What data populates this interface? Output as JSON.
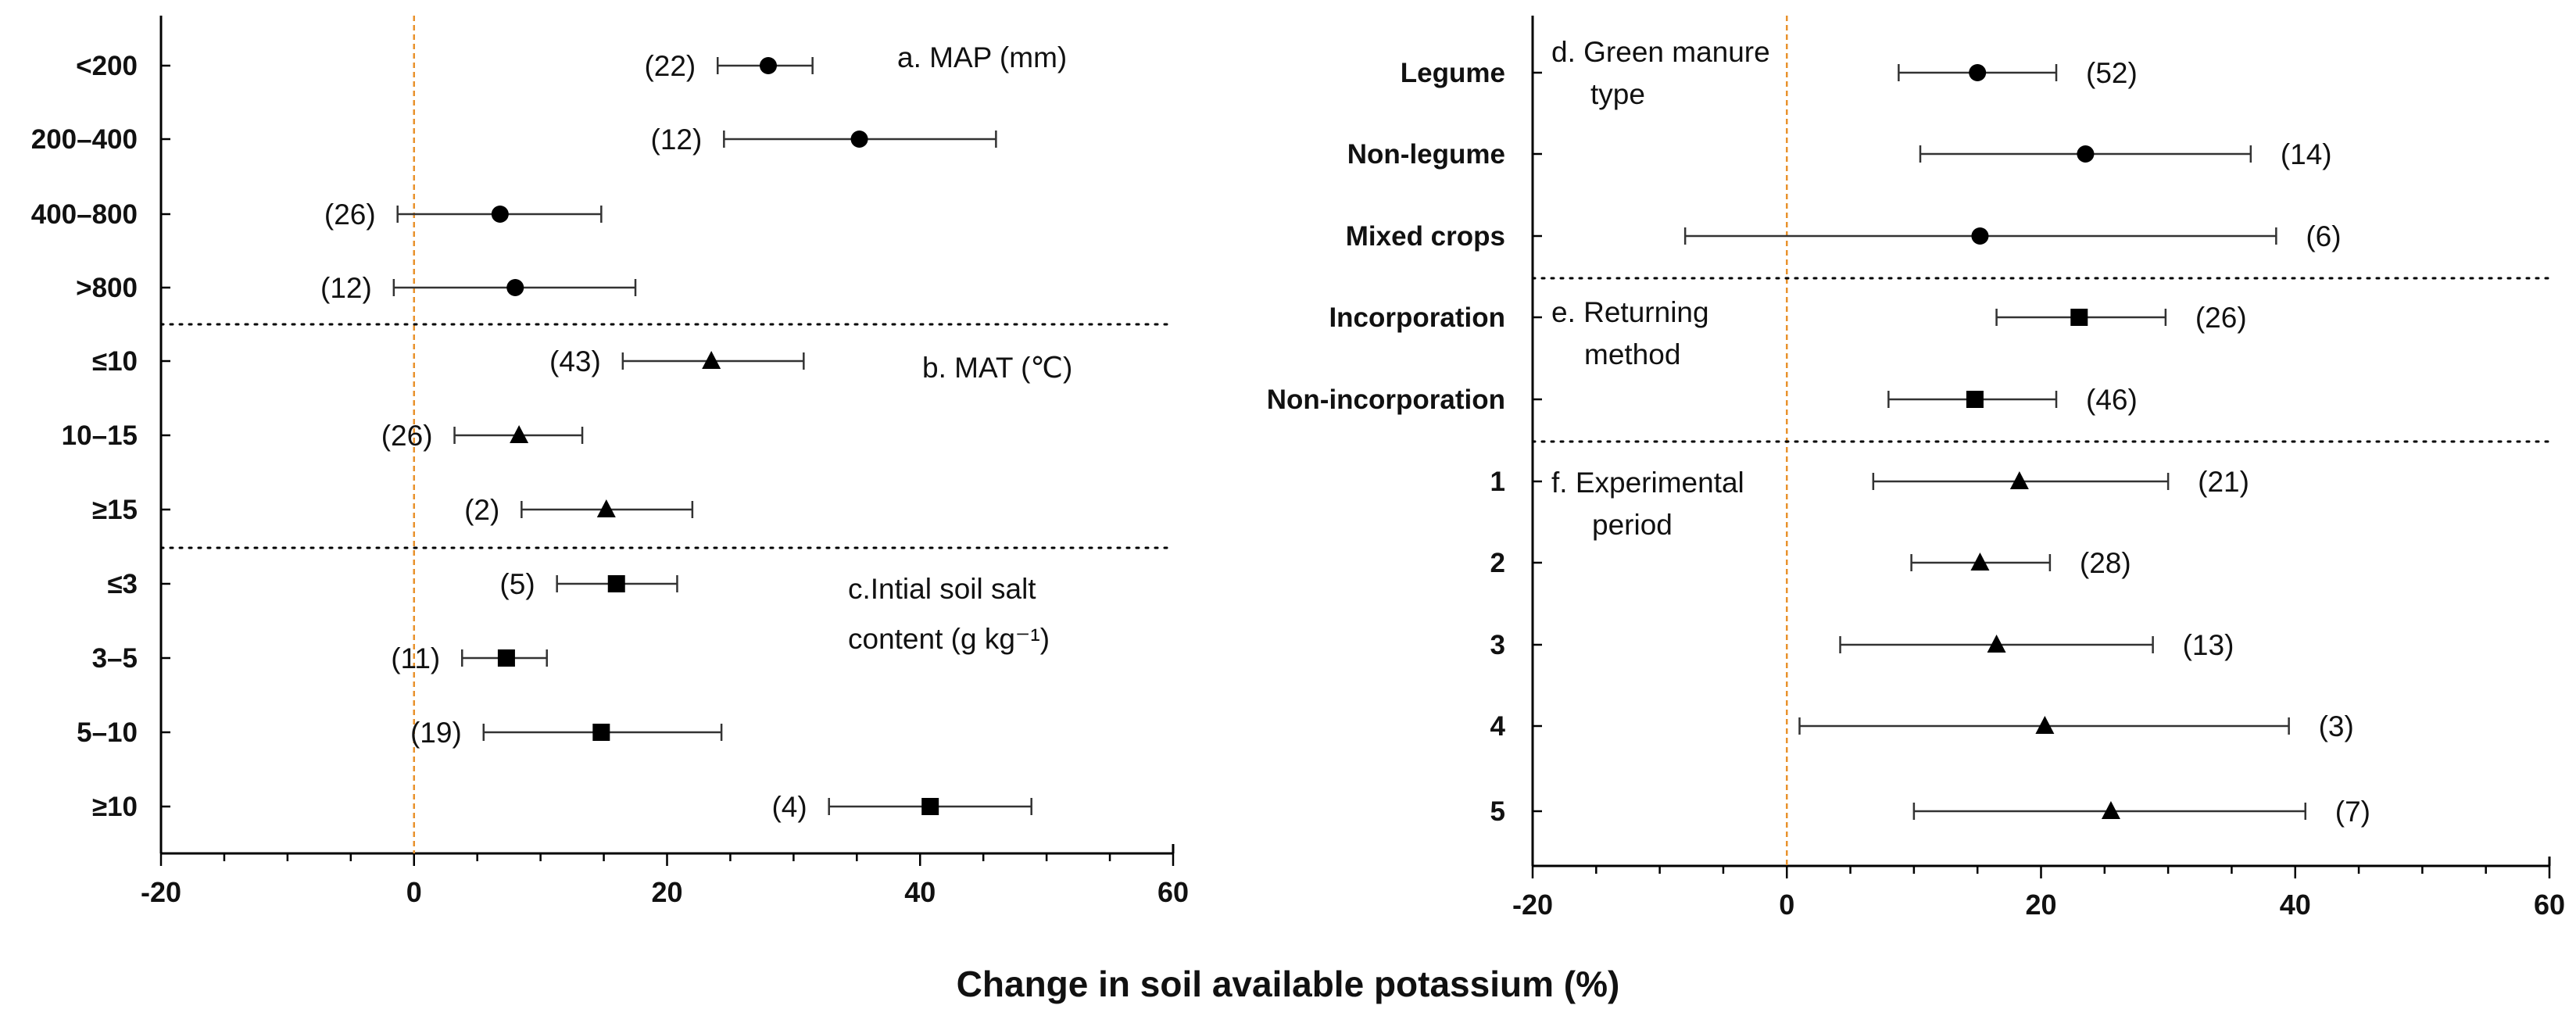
{
  "chart_data": [
    {
      "type": "forest",
      "xlim": [
        -20,
        60
      ],
      "xticks": [
        "-20",
        "0",
        "20",
        "40",
        "60"
      ],
      "reference_line": 0,
      "groups": [
        {
          "label": "a. MAP (mm)",
          "marker": "circle",
          "rows": [
            {
              "category": "<200",
              "mean": 28,
              "ci": [
                24,
                31.5
              ],
              "n": "(22)"
            },
            {
              "category": "200–400",
              "mean": 35.2,
              "ci": [
                24.5,
                46
              ],
              "n": "(12)"
            },
            {
              "category": "400–800",
              "mean": 6.8,
              "ci": [
                -1.3,
                14.8
              ],
              "n": "(26)"
            },
            {
              "category": ">800",
              "mean": 8,
              "ci": [
                -1.6,
                17.5
              ],
              "n": "(12)"
            }
          ]
        },
        {
          "label": "b. MAT (℃)",
          "marker": "triangle",
          "rows": [
            {
              "category": "≤10",
              "mean": 23.5,
              "ci": [
                16.5,
                30.8
              ],
              "n": "(43)"
            },
            {
              "category": "10–15",
              "mean": 8.3,
              "ci": [
                3.2,
                13.3
              ],
              "n": "(26)"
            },
            {
              "category": "≥15",
              "mean": 15.2,
              "ci": [
                8.5,
                22
              ],
              "n": "(2)"
            }
          ]
        },
        {
          "label": "c.Intial soil salt content (g kg⁻¹)",
          "marker": "square",
          "rows": [
            {
              "category": "≤3",
              "mean": 16,
              "ci": [
                11.3,
                20.8
              ],
              "n": "(5)"
            },
            {
              "category": "3–5",
              "mean": 7.3,
              "ci": [
                3.8,
                10.5
              ],
              "n": "(11)"
            },
            {
              "category": "5–10",
              "mean": 14.8,
              "ci": [
                5.5,
                24.3
              ],
              "n": "(19)"
            },
            {
              "category": "≥10",
              "mean": 40.8,
              "ci": [
                32.8,
                48.8
              ],
              "n": "(4)"
            }
          ]
        }
      ]
    },
    {
      "type": "forest",
      "xlim": [
        -20,
        60
      ],
      "xticks": [
        "-20",
        "0",
        "20",
        "40",
        "60"
      ],
      "reference_line": 0,
      "groups": [
        {
          "label": "d. Green manure type",
          "marker": "circle",
          "rows": [
            {
              "category": "Legume",
              "mean": 15,
              "ci": [
                8.8,
                21.2
              ],
              "n": "(52)"
            },
            {
              "category": "Non-legume",
              "mean": 23.5,
              "ci": [
                10.5,
                36.5
              ],
              "n": "(14)"
            },
            {
              "category": "Mixed crops",
              "mean": 15.2,
              "ci": [
                -8,
                38.5
              ],
              "n": "(6)"
            }
          ]
        },
        {
          "label": "e. Returning method",
          "marker": "square",
          "rows": [
            {
              "category": "Incorporation",
              "mean": 23,
              "ci": [
                16.5,
                29.8
              ],
              "n": "(26)"
            },
            {
              "category": "Non-incorporation",
              "mean": 14.8,
              "ci": [
                8,
                21.2
              ],
              "n": "(46)"
            }
          ]
        },
        {
          "label": "f. Experimental period",
          "marker": "triangle",
          "rows": [
            {
              "category": "1",
              "mean": 18.3,
              "ci": [
                6.8,
                30
              ],
              "n": "(21)"
            },
            {
              "category": "2",
              "mean": 15.2,
              "ci": [
                9.8,
                20.7
              ],
              "n": "(28)"
            },
            {
              "category": "3",
              "mean": 16.5,
              "ci": [
                4.2,
                28.8
              ],
              "n": "(13)"
            },
            {
              "category": "4",
              "mean": 20.3,
              "ci": [
                1,
                39.5
              ],
              "n": "(3)"
            },
            {
              "category": "5",
              "mean": 25.5,
              "ci": [
                10,
                40.8
              ],
              "n": "(7)"
            }
          ]
        }
      ]
    }
  ],
  "xlabel": "Change in soil available  potassium (%)",
  "colors": {
    "reference_line": "#e8922c",
    "marker": "#000000",
    "axis": "#000000"
  }
}
